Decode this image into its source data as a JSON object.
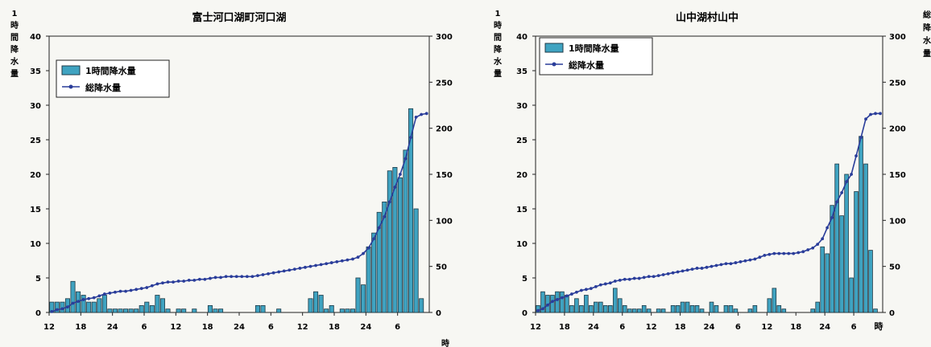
{
  "chart_data": [
    {
      "type": "bar+line",
      "title": "富士河口湖町河口湖",
      "y1_label": [
        "1",
        "時",
        "間",
        "降",
        "水",
        "量"
      ],
      "y2_label": [
        "総",
        "降",
        "水",
        "量"
      ],
      "x_unit": "時",
      "y1lim": [
        0,
        40
      ],
      "y2lim": [
        0,
        300
      ],
      "y1_ticks": [
        "0",
        "5",
        "10",
        "15",
        "20",
        "25",
        "30",
        "35",
        "40"
      ],
      "y2_ticks": [
        "0",
        "50",
        "100",
        "150",
        "200",
        "250",
        "300"
      ],
      "x_tick_labels": [
        "12",
        "18",
        "24",
        "6",
        "12",
        "18",
        "24",
        "6",
        "12",
        "18",
        "24",
        "6"
      ],
      "x_tick_hours": [
        0,
        6,
        12,
        18,
        24,
        30,
        36,
        42,
        48,
        54,
        60,
        66
      ],
      "legend": {
        "bar": "1時間降水量",
        "line": "総降水量",
        "position": "top-left"
      },
      "hours": 72,
      "hourly": [
        1.5,
        1.5,
        1.5,
        2,
        4.5,
        3,
        2.5,
        1.5,
        1.5,
        2,
        2.5,
        0.5,
        0.5,
        0.5,
        0.5,
        0.5,
        0.5,
        1,
        1.5,
        1,
        2.5,
        2,
        0.5,
        0,
        0.5,
        0.5,
        0,
        0.5,
        0,
        0,
        1,
        0.5,
        0.5,
        0,
        0,
        0,
        0,
        0,
        0,
        1,
        1,
        0,
        0,
        0.5,
        0,
        0,
        0,
        0,
        0,
        2,
        3,
        2.5,
        0.5,
        1,
        0,
        0.5,
        0.5,
        0.5,
        5,
        4,
        9.5,
        11.5,
        14.5,
        16,
        20.5,
        21,
        19.5,
        23.5,
        29.5,
        15,
        2,
        0
      ],
      "total": [
        1,
        3,
        4,
        6,
        10,
        12,
        14,
        15,
        16,
        18,
        20,
        21,
        22,
        23,
        23,
        24,
        25,
        26,
        27,
        29,
        31,
        32,
        33,
        33,
        34,
        34,
        35,
        35,
        36,
        36,
        37,
        38,
        38,
        39,
        39,
        39,
        39,
        39,
        39,
        40,
        41,
        42,
        43,
        44,
        45,
        46,
        47,
        48,
        49,
        50,
        51,
        52,
        53,
        54,
        55,
        56,
        57,
        58,
        60,
        64,
        70,
        80,
        92,
        104,
        120,
        136,
        150,
        167,
        190,
        212,
        215,
        216
      ]
    },
    {
      "type": "bar+line",
      "title": "山中湖村山中",
      "y1_label": [
        "1",
        "時",
        "間",
        "降",
        "水",
        "量"
      ],
      "y2_label": [
        "総",
        "降",
        "水",
        "量"
      ],
      "x_unit": "時",
      "y1lim": [
        0,
        40
      ],
      "y2lim": [
        0,
        300
      ],
      "y1_ticks": [
        "0",
        "5",
        "10",
        "15",
        "20",
        "25",
        "30",
        "35",
        "40"
      ],
      "y2_ticks": [
        "0",
        "50",
        "100",
        "150",
        "200",
        "250",
        "300"
      ],
      "x_tick_labels": [
        "12",
        "18",
        "24",
        "6",
        "12",
        "18",
        "24",
        "6",
        "12",
        "18",
        "24",
        "6"
      ],
      "x_tick_hours": [
        0,
        6,
        12,
        18,
        24,
        30,
        36,
        42,
        48,
        54,
        60,
        66
      ],
      "legend": {
        "bar": "1時間降水量",
        "line": "総降水量",
        "position": "top-left"
      },
      "hours": 72,
      "hourly": [
        1,
        3,
        2.5,
        2.5,
        3,
        3,
        2.5,
        1,
        2,
        1,
        2.5,
        1,
        1.5,
        1.5,
        1,
        1,
        3.5,
        2,
        1,
        0.5,
        0.5,
        0.5,
        1,
        0.5,
        0,
        0.5,
        0.5,
        0,
        1,
        1,
        1.5,
        1.5,
        1,
        1,
        0.5,
        0,
        1.5,
        1,
        0,
        1,
        1,
        0.5,
        0,
        0,
        0.5,
        1,
        0,
        0,
        2,
        3.5,
        1,
        0.5,
        0,
        0,
        0,
        0,
        0,
        0.5,
        1.5,
        9.5,
        8.5,
        15.5,
        21.5,
        14,
        20,
        5,
        17.5,
        25.5,
        21.5,
        9,
        0.5,
        0
      ],
      "total": [
        2,
        4,
        8,
        12,
        14,
        16,
        18,
        20,
        22,
        24,
        25,
        26,
        28,
        30,
        31,
        32,
        34,
        35,
        36,
        36,
        37,
        37,
        38,
        39,
        39,
        40,
        41,
        42,
        43,
        44,
        45,
        46,
        47,
        48,
        48,
        49,
        50,
        51,
        52,
        53,
        53,
        54,
        55,
        56,
        57,
        58,
        60,
        62,
        63,
        64,
        64,
        64,
        64,
        64,
        65,
        66,
        68,
        70,
        74,
        80,
        92,
        103,
        120,
        130,
        142,
        150,
        170,
        190,
        210,
        215,
        216,
        216
      ]
    }
  ]
}
